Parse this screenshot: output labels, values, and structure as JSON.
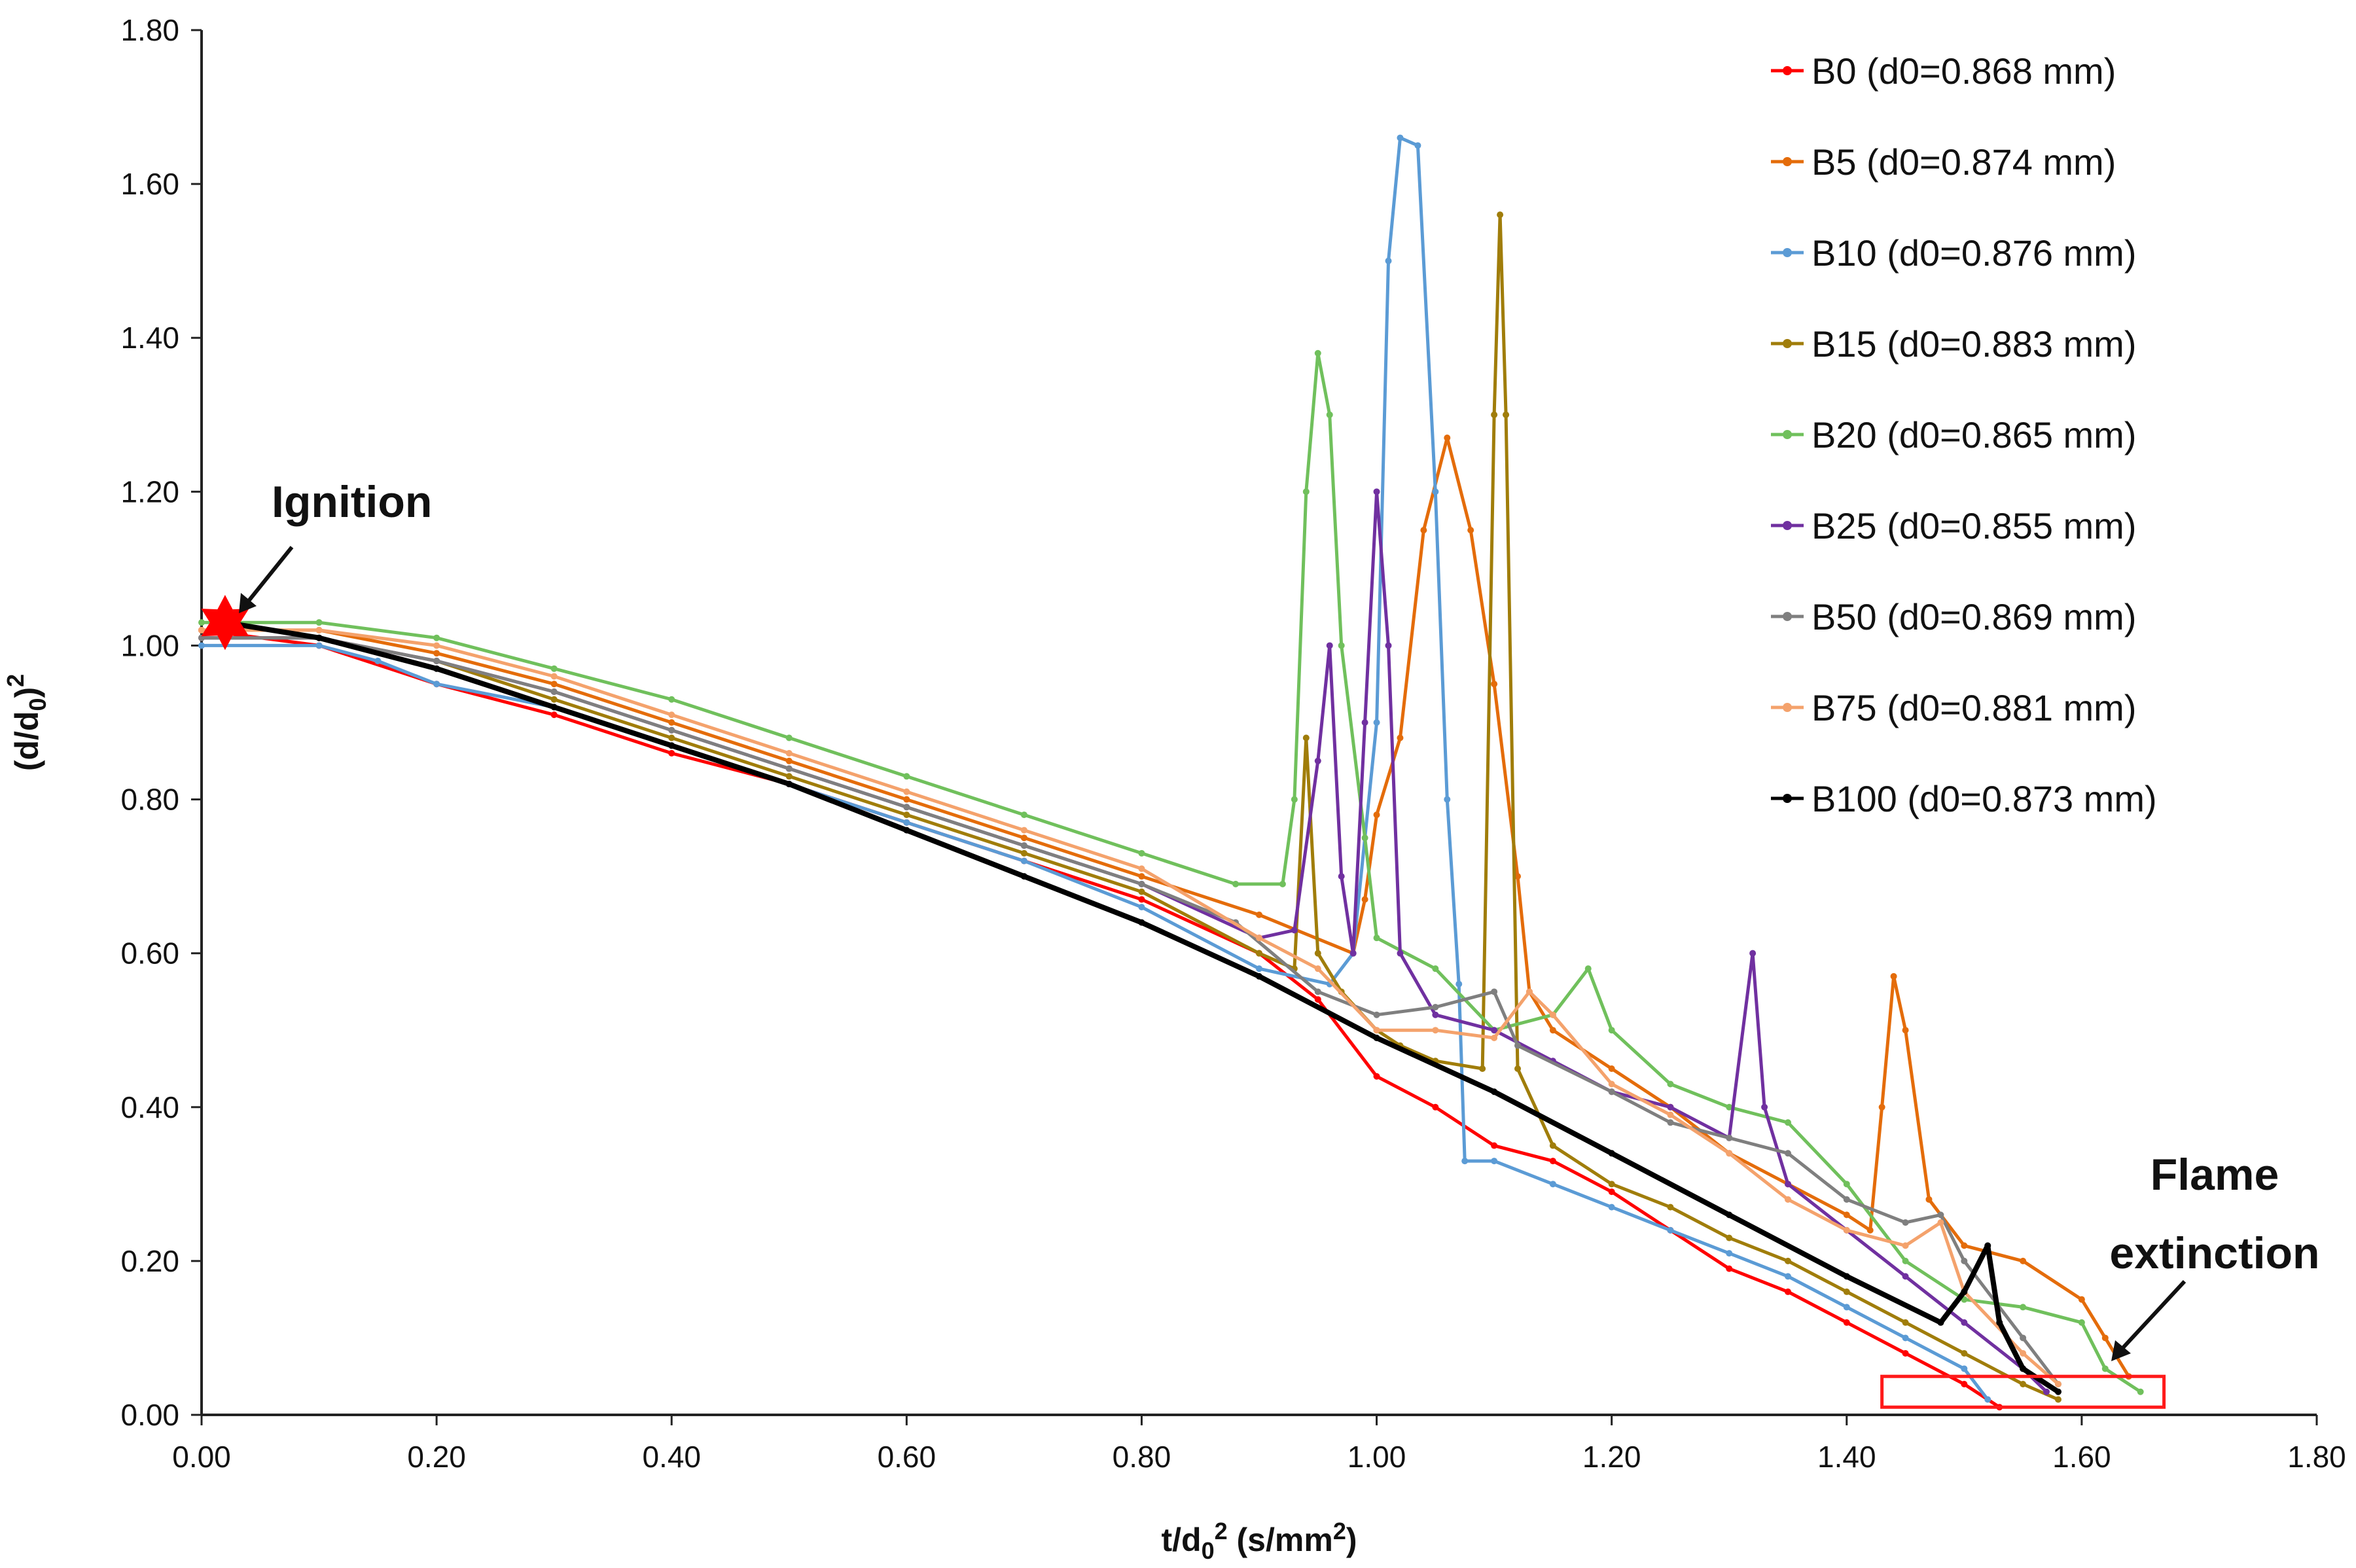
{
  "chart_data": {
    "type": "line",
    "xlabel": "t/d0² (s/mm²)",
    "ylabel": "(d/d0)²",
    "xlim": [
      0,
      1.8
    ],
    "ylim": [
      0,
      1.8
    ],
    "xticks": [
      "0.00",
      "0.20",
      "0.40",
      "0.60",
      "0.80",
      "1.00",
      "1.20",
      "1.40",
      "1.60",
      "1.80"
    ],
    "yticks": [
      "0.00",
      "0.20",
      "0.40",
      "0.60",
      "0.80",
      "1.00",
      "1.20",
      "1.40",
      "1.60",
      "1.80"
    ],
    "grid": false,
    "legend_position": "top-right",
    "annotations": {
      "ignition": {
        "label": "Ignition",
        "x": 0.02,
        "y": 1.03
      },
      "extinction": {
        "label_line1": "Flame",
        "label_line2": "extinction",
        "x_range": [
          1.43,
          1.67
        ],
        "y_range": [
          0.01,
          0.05
        ]
      }
    },
    "series": [
      {
        "name": "B0 (d0=0.868 mm)",
        "color": "#ff0000",
        "points": [
          [
            0.0,
            1.02
          ],
          [
            0.1,
            1.0
          ],
          [
            0.2,
            0.95
          ],
          [
            0.3,
            0.91
          ],
          [
            0.4,
            0.86
          ],
          [
            0.5,
            0.82
          ],
          [
            0.6,
            0.77
          ],
          [
            0.7,
            0.72
          ],
          [
            0.8,
            0.67
          ],
          [
            0.9,
            0.6
          ],
          [
            0.95,
            0.54
          ],
          [
            1.0,
            0.44
          ],
          [
            1.05,
            0.4
          ],
          [
            1.1,
            0.35
          ],
          [
            1.15,
            0.33
          ],
          [
            1.2,
            0.29
          ],
          [
            1.25,
            0.24
          ],
          [
            1.3,
            0.19
          ],
          [
            1.35,
            0.16
          ],
          [
            1.4,
            0.12
          ],
          [
            1.45,
            0.08
          ],
          [
            1.5,
            0.04
          ],
          [
            1.53,
            0.01
          ]
        ]
      },
      {
        "name": "B5 (d0=0.874 mm)",
        "color": "#e46c0a",
        "points": [
          [
            0.0,
            1.02
          ],
          [
            0.1,
            1.02
          ],
          [
            0.2,
            0.99
          ],
          [
            0.3,
            0.95
          ],
          [
            0.4,
            0.9
          ],
          [
            0.5,
            0.85
          ],
          [
            0.6,
            0.8
          ],
          [
            0.7,
            0.75
          ],
          [
            0.8,
            0.7
          ],
          [
            0.9,
            0.65
          ],
          [
            0.98,
            0.6
          ],
          [
            0.99,
            0.67
          ],
          [
            1.0,
            0.78
          ],
          [
            1.02,
            0.88
          ],
          [
            1.04,
            1.15
          ],
          [
            1.06,
            1.27
          ],
          [
            1.08,
            1.15
          ],
          [
            1.1,
            0.95
          ],
          [
            1.12,
            0.7
          ],
          [
            1.13,
            0.55
          ],
          [
            1.15,
            0.5
          ],
          [
            1.2,
            0.45
          ],
          [
            1.25,
            0.4
          ],
          [
            1.3,
            0.34
          ],
          [
            1.35,
            0.3
          ],
          [
            1.4,
            0.26
          ],
          [
            1.42,
            0.24
          ],
          [
            1.43,
            0.4
          ],
          [
            1.44,
            0.57
          ],
          [
            1.45,
            0.5
          ],
          [
            1.47,
            0.28
          ],
          [
            1.5,
            0.22
          ],
          [
            1.55,
            0.2
          ],
          [
            1.6,
            0.15
          ],
          [
            1.62,
            0.1
          ],
          [
            1.64,
            0.05
          ]
        ]
      },
      {
        "name": "B10 (d0=0.876 mm)",
        "color": "#5b9bd5",
        "points": [
          [
            0.0,
            1.0
          ],
          [
            0.1,
            1.0
          ],
          [
            0.15,
            0.98
          ],
          [
            0.2,
            0.95
          ],
          [
            0.3,
            0.92
          ],
          [
            0.4,
            0.87
          ],
          [
            0.5,
            0.82
          ],
          [
            0.6,
            0.77
          ],
          [
            0.7,
            0.72
          ],
          [
            0.8,
            0.66
          ],
          [
            0.9,
            0.58
          ],
          [
            0.96,
            0.56
          ],
          [
            0.98,
            0.6
          ],
          [
            1.0,
            0.9
          ],
          [
            1.01,
            1.5
          ],
          [
            1.02,
            1.66
          ],
          [
            1.035,
            1.65
          ],
          [
            1.05,
            1.2
          ],
          [
            1.06,
            0.8
          ],
          [
            1.07,
            0.56
          ],
          [
            1.075,
            0.33
          ],
          [
            1.1,
            0.33
          ],
          [
            1.15,
            0.3
          ],
          [
            1.2,
            0.27
          ],
          [
            1.25,
            0.24
          ],
          [
            1.3,
            0.21
          ],
          [
            1.35,
            0.18
          ],
          [
            1.4,
            0.14
          ],
          [
            1.45,
            0.1
          ],
          [
            1.5,
            0.06
          ],
          [
            1.52,
            0.02
          ]
        ]
      },
      {
        "name": "B15 (d0=0.883 mm)",
        "color": "#a07d0a",
        "points": [
          [
            0.0,
            1.01
          ],
          [
            0.1,
            1.01
          ],
          [
            0.2,
            0.98
          ],
          [
            0.3,
            0.93
          ],
          [
            0.4,
            0.88
          ],
          [
            0.5,
            0.83
          ],
          [
            0.6,
            0.78
          ],
          [
            0.7,
            0.73
          ],
          [
            0.8,
            0.68
          ],
          [
            0.9,
            0.6
          ],
          [
            0.93,
            0.58
          ],
          [
            0.94,
            0.88
          ],
          [
            0.95,
            0.6
          ],
          [
            0.97,
            0.55
          ],
          [
            1.0,
            0.5
          ],
          [
            1.02,
            0.48
          ],
          [
            1.05,
            0.46
          ],
          [
            1.09,
            0.45
          ],
          [
            1.1,
            1.3
          ],
          [
            1.105,
            1.56
          ],
          [
            1.11,
            1.3
          ],
          [
            1.12,
            0.45
          ],
          [
            1.15,
            0.35
          ],
          [
            1.2,
            0.3
          ],
          [
            1.25,
            0.27
          ],
          [
            1.3,
            0.23
          ],
          [
            1.35,
            0.2
          ],
          [
            1.4,
            0.16
          ],
          [
            1.45,
            0.12
          ],
          [
            1.5,
            0.08
          ],
          [
            1.55,
            0.04
          ],
          [
            1.58,
            0.02
          ]
        ]
      },
      {
        "name": "B20 (d0=0.865 mm)",
        "color": "#70c05c",
        "points": [
          [
            0.0,
            1.03
          ],
          [
            0.1,
            1.03
          ],
          [
            0.2,
            1.01
          ],
          [
            0.3,
            0.97
          ],
          [
            0.4,
            0.93
          ],
          [
            0.5,
            0.88
          ],
          [
            0.6,
            0.83
          ],
          [
            0.7,
            0.78
          ],
          [
            0.8,
            0.73
          ],
          [
            0.88,
            0.69
          ],
          [
            0.92,
            0.69
          ],
          [
            0.93,
            0.8
          ],
          [
            0.94,
            1.2
          ],
          [
            0.95,
            1.38
          ],
          [
            0.96,
            1.3
          ],
          [
            0.97,
            1.0
          ],
          [
            0.99,
            0.75
          ],
          [
            1.0,
            0.62
          ],
          [
            1.05,
            0.58
          ],
          [
            1.1,
            0.5
          ],
          [
            1.15,
            0.52
          ],
          [
            1.18,
            0.58
          ],
          [
            1.2,
            0.5
          ],
          [
            1.25,
            0.43
          ],
          [
            1.3,
            0.4
          ],
          [
            1.35,
            0.38
          ],
          [
            1.4,
            0.3
          ],
          [
            1.45,
            0.2
          ],
          [
            1.5,
            0.15
          ],
          [
            1.55,
            0.14
          ],
          [
            1.6,
            0.12
          ],
          [
            1.62,
            0.06
          ],
          [
            1.65,
            0.03
          ]
        ]
      },
      {
        "name": "B25 (d0=0.855 mm)",
        "color": "#7030a0",
        "points": [
          [
            0.0,
            1.01
          ],
          [
            0.1,
            1.01
          ],
          [
            0.2,
            0.98
          ],
          [
            0.3,
            0.94
          ],
          [
            0.4,
            0.89
          ],
          [
            0.5,
            0.84
          ],
          [
            0.6,
            0.79
          ],
          [
            0.7,
            0.74
          ],
          [
            0.8,
            0.69
          ],
          [
            0.9,
            0.62
          ],
          [
            0.93,
            0.63
          ],
          [
            0.95,
            0.85
          ],
          [
            0.96,
            1.0
          ],
          [
            0.97,
            0.7
          ],
          [
            0.98,
            0.6
          ],
          [
            0.99,
            0.9
          ],
          [
            1.0,
            1.2
          ],
          [
            1.01,
            1.0
          ],
          [
            1.02,
            0.6
          ],
          [
            1.05,
            0.52
          ],
          [
            1.1,
            0.5
          ],
          [
            1.15,
            0.46
          ],
          [
            1.2,
            0.42
          ],
          [
            1.25,
            0.4
          ],
          [
            1.3,
            0.36
          ],
          [
            1.32,
            0.6
          ],
          [
            1.33,
            0.4
          ],
          [
            1.35,
            0.3
          ],
          [
            1.4,
            0.24
          ],
          [
            1.45,
            0.18
          ],
          [
            1.5,
            0.12
          ],
          [
            1.55,
            0.06
          ],
          [
            1.57,
            0.03
          ]
        ]
      },
      {
        "name": "B50 (d0=0.869 mm)",
        "color": "#7f7f7f",
        "points": [
          [
            0.0,
            1.01
          ],
          [
            0.1,
            1.01
          ],
          [
            0.2,
            0.98
          ],
          [
            0.3,
            0.94
          ],
          [
            0.4,
            0.89
          ],
          [
            0.5,
            0.84
          ],
          [
            0.6,
            0.79
          ],
          [
            0.7,
            0.74
          ],
          [
            0.8,
            0.69
          ],
          [
            0.88,
            0.64
          ],
          [
            0.95,
            0.55
          ],
          [
            1.0,
            0.52
          ],
          [
            1.05,
            0.53
          ],
          [
            1.1,
            0.55
          ],
          [
            1.12,
            0.48
          ],
          [
            1.2,
            0.42
          ],
          [
            1.25,
            0.38
          ],
          [
            1.3,
            0.36
          ],
          [
            1.35,
            0.34
          ],
          [
            1.4,
            0.28
          ],
          [
            1.45,
            0.25
          ],
          [
            1.48,
            0.26
          ],
          [
            1.5,
            0.2
          ],
          [
            1.55,
            0.1
          ],
          [
            1.58,
            0.04
          ]
        ]
      },
      {
        "name": "B75 (d0=0.881 mm)",
        "color": "#f4a26c",
        "points": [
          [
            0.0,
            1.02
          ],
          [
            0.1,
            1.02
          ],
          [
            0.2,
            1.0
          ],
          [
            0.3,
            0.96
          ],
          [
            0.4,
            0.91
          ],
          [
            0.5,
            0.86
          ],
          [
            0.6,
            0.81
          ],
          [
            0.7,
            0.76
          ],
          [
            0.8,
            0.71
          ],
          [
            0.9,
            0.62
          ],
          [
            0.95,
            0.58
          ],
          [
            1.0,
            0.5
          ],
          [
            1.05,
            0.5
          ],
          [
            1.1,
            0.49
          ],
          [
            1.13,
            0.55
          ],
          [
            1.15,
            0.52
          ],
          [
            1.2,
            0.43
          ],
          [
            1.25,
            0.39
          ],
          [
            1.3,
            0.34
          ],
          [
            1.35,
            0.28
          ],
          [
            1.4,
            0.24
          ],
          [
            1.45,
            0.22
          ],
          [
            1.48,
            0.25
          ],
          [
            1.5,
            0.16
          ],
          [
            1.55,
            0.08
          ],
          [
            1.58,
            0.04
          ]
        ]
      },
      {
        "name": "B100 (d0=0.873 mm)",
        "color": "#000000",
        "points": [
          [
            0.02,
            1.03
          ],
          [
            0.1,
            1.01
          ],
          [
            0.2,
            0.97
          ],
          [
            0.3,
            0.92
          ],
          [
            0.4,
            0.87
          ],
          [
            0.5,
            0.82
          ],
          [
            0.6,
            0.76
          ],
          [
            0.7,
            0.7
          ],
          [
            0.8,
            0.64
          ],
          [
            0.9,
            0.57
          ],
          [
            1.0,
            0.49
          ],
          [
            1.1,
            0.42
          ],
          [
            1.2,
            0.34
          ],
          [
            1.3,
            0.26
          ],
          [
            1.4,
            0.18
          ],
          [
            1.48,
            0.12
          ],
          [
            1.5,
            0.16
          ],
          [
            1.52,
            0.22
          ],
          [
            1.53,
            0.12
          ],
          [
            1.55,
            0.06
          ],
          [
            1.58,
            0.03
          ]
        ]
      }
    ]
  }
}
